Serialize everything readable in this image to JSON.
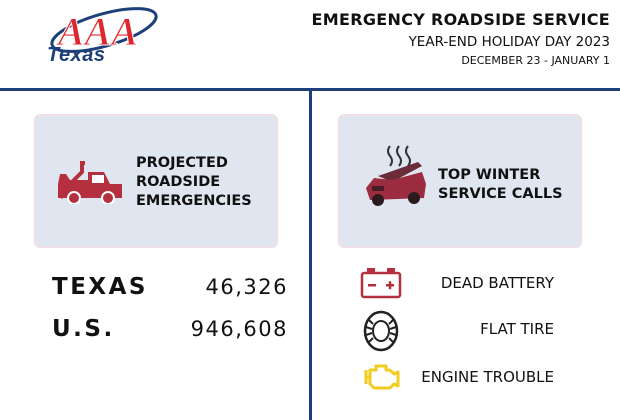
{
  "header": {
    "logo": {
      "name": "AAA",
      "subtext": "Texas",
      "icon": "aaa-oval-logo",
      "brand_color": "#e0262d",
      "accent_color": "#1d3f7a"
    },
    "title": "EMERGENCY ROADSIDE SERVICE",
    "subtitle": "YEAR-END HOLIDAY DAY 2023",
    "dates": "DECEMBER 23 - JANUARY 1"
  },
  "left_panel": {
    "card": {
      "icon": "tow-truck-icon",
      "title": "PROJECTED\nROADSIDE\nEMERGENCIES"
    },
    "stats": [
      {
        "label": "TEXAS",
        "value": "46,326"
      },
      {
        "label": "U.S.",
        "value": "946,608"
      }
    ]
  },
  "right_panel": {
    "card": {
      "icon": "overheating-car-icon",
      "title": "TOP WINTER\nSERVICE CALLS"
    },
    "calls": [
      {
        "icon": "car-battery-icon",
        "label": "DEAD BATTERY",
        "color": "#b5303e"
      },
      {
        "icon": "tire-icon",
        "label": "FLAT TIRE",
        "color": "#222222"
      },
      {
        "icon": "engine-warning-icon",
        "label": "ENGINE TROUBLE",
        "color": "#f2cc1f"
      }
    ]
  }
}
